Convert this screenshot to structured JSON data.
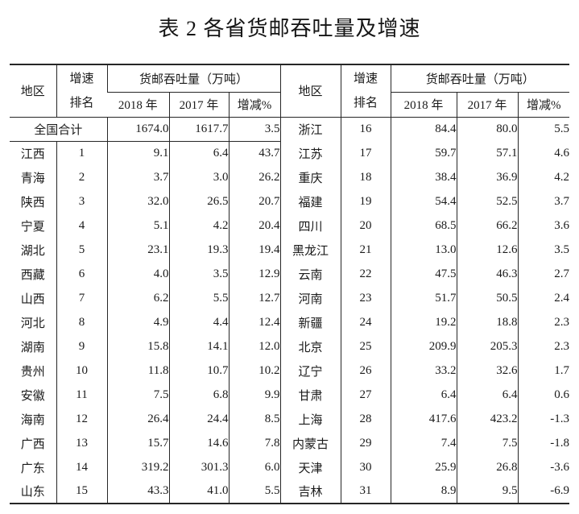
{
  "title": "表 2  各省货邮吞吐量及增速",
  "table": {
    "header": {
      "region": "地区",
      "growth_rank_line1": "增速",
      "growth_rank_line2": "排名",
      "throughput_group": "货邮吞吐量（万吨）",
      "year_2018": "2018 年",
      "year_2017": "2017 年",
      "change": "增减%"
    },
    "body": [
      {
        "left": {
          "merged": true,
          "region": "全国合计",
          "v2018": "1674.0",
          "v2017": "1617.7",
          "chg": "3.5"
        },
        "right": {
          "region": "浙江",
          "rank": "16",
          "v2018": "84.4",
          "v2017": "80.0",
          "chg": "5.5"
        }
      },
      {
        "left": {
          "region": "江西",
          "rank": "1",
          "v2018": "9.1",
          "v2017": "6.4",
          "chg": "43.7"
        },
        "right": {
          "region": "江苏",
          "rank": "17",
          "v2018": "59.7",
          "v2017": "57.1",
          "chg": "4.6"
        }
      },
      {
        "left": {
          "region": "青海",
          "rank": "2",
          "v2018": "3.7",
          "v2017": "3.0",
          "chg": "26.2"
        },
        "right": {
          "region": "重庆",
          "rank": "18",
          "v2018": "38.4",
          "v2017": "36.9",
          "chg": "4.2"
        }
      },
      {
        "left": {
          "region": "陕西",
          "rank": "3",
          "v2018": "32.0",
          "v2017": "26.5",
          "chg": "20.7"
        },
        "right": {
          "region": "福建",
          "rank": "19",
          "v2018": "54.4",
          "v2017": "52.5",
          "chg": "3.7"
        }
      },
      {
        "left": {
          "region": "宁夏",
          "rank": "4",
          "v2018": "5.1",
          "v2017": "4.2",
          "chg": "20.4"
        },
        "right": {
          "region": "四川",
          "rank": "20",
          "v2018": "68.5",
          "v2017": "66.2",
          "chg": "3.6"
        }
      },
      {
        "left": {
          "region": "湖北",
          "rank": "5",
          "v2018": "23.1",
          "v2017": "19.3",
          "chg": "19.4"
        },
        "right": {
          "region": "黑龙江",
          "rank": "21",
          "v2018": "13.0",
          "v2017": "12.6",
          "chg": "3.5"
        }
      },
      {
        "left": {
          "region": "西藏",
          "rank": "6",
          "v2018": "4.0",
          "v2017": "3.5",
          "chg": "12.9"
        },
        "right": {
          "region": "云南",
          "rank": "22",
          "v2018": "47.5",
          "v2017": "46.3",
          "chg": "2.7"
        }
      },
      {
        "left": {
          "region": "山西",
          "rank": "7",
          "v2018": "6.2",
          "v2017": "5.5",
          "chg": "12.7"
        },
        "right": {
          "region": "河南",
          "rank": "23",
          "v2018": "51.7",
          "v2017": "50.5",
          "chg": "2.4"
        }
      },
      {
        "left": {
          "region": "河北",
          "rank": "8",
          "v2018": "4.9",
          "v2017": "4.4",
          "chg": "12.4"
        },
        "right": {
          "region": "新疆",
          "rank": "24",
          "v2018": "19.2",
          "v2017": "18.8",
          "chg": "2.3"
        }
      },
      {
        "left": {
          "region": "湖南",
          "rank": "9",
          "v2018": "15.8",
          "v2017": "14.1",
          "chg": "12.0"
        },
        "right": {
          "region": "北京",
          "rank": "25",
          "v2018": "209.9",
          "v2017": "205.3",
          "chg": "2.3"
        }
      },
      {
        "left": {
          "region": "贵州",
          "rank": "10",
          "v2018": "11.8",
          "v2017": "10.7",
          "chg": "10.2"
        },
        "right": {
          "region": "辽宁",
          "rank": "26",
          "v2018": "33.2",
          "v2017": "32.6",
          "chg": "1.7"
        }
      },
      {
        "left": {
          "region": "安徽",
          "rank": "11",
          "v2018": "7.5",
          "v2017": "6.8",
          "chg": "9.9"
        },
        "right": {
          "region": "甘肃",
          "rank": "27",
          "v2018": "6.4",
          "v2017": "6.4",
          "chg": "0.6"
        }
      },
      {
        "left": {
          "region": "海南",
          "rank": "12",
          "v2018": "26.4",
          "v2017": "24.4",
          "chg": "8.5"
        },
        "right": {
          "region": "上海",
          "rank": "28",
          "v2018": "417.6",
          "v2017": "423.2",
          "chg": "-1.3"
        }
      },
      {
        "left": {
          "region": "广西",
          "rank": "13",
          "v2018": "15.7",
          "v2017": "14.6",
          "chg": "7.8"
        },
        "right": {
          "region": "内蒙古",
          "rank": "29",
          "v2018": "7.4",
          "v2017": "7.5",
          "chg": "-1.8"
        }
      },
      {
        "left": {
          "region": "广东",
          "rank": "14",
          "v2018": "319.2",
          "v2017": "301.3",
          "chg": "6.0"
        },
        "right": {
          "region": "天津",
          "rank": "30",
          "v2018": "25.9",
          "v2017": "26.8",
          "chg": "-3.6"
        }
      },
      {
        "left": {
          "region": "山东",
          "rank": "15",
          "v2018": "43.3",
          "v2017": "41.0",
          "chg": "5.5"
        },
        "right": {
          "region": "吉林",
          "rank": "31",
          "v2018": "8.9",
          "v2017": "9.5",
          "chg": "-6.9"
        }
      }
    ]
  }
}
